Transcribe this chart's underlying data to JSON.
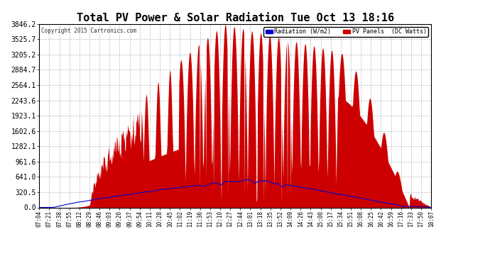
{
  "title": "Total PV Power & Solar Radiation Tue Oct 13 18:16",
  "copyright": "Copyright 2015 Cartronics.com",
  "legend_radiation": "Radiation (W/m2)",
  "legend_pv": "PV Panels  (DC Watts)",
  "yticks": [
    0.0,
    320.5,
    641.0,
    961.6,
    1282.1,
    1602.6,
    1923.1,
    2243.6,
    2564.1,
    2884.7,
    3205.2,
    3525.7,
    3846.2
  ],
  "ymax": 3846.2,
  "background_color": "#ffffff",
  "plot_bg_color": "#ffffff",
  "grid_color": "#aaaaaa",
  "pv_color": "#cc0000",
  "radiation_color": "#0000cc",
  "title_fontsize": 11,
  "xtick_labels": [
    "07:04",
    "07:21",
    "07:38",
    "07:55",
    "08:12",
    "08:29",
    "08:46",
    "09:03",
    "09:20",
    "09:37",
    "09:54",
    "10:11",
    "10:28",
    "10:45",
    "11:02",
    "11:19",
    "11:36",
    "11:53",
    "12:10",
    "12:27",
    "12:44",
    "13:01",
    "13:18",
    "13:35",
    "13:52",
    "14:09",
    "14:26",
    "14:43",
    "15:00",
    "15:17",
    "15:34",
    "15:51",
    "16:08",
    "16:25",
    "16:42",
    "16:59",
    "17:16",
    "17:33",
    "17:50",
    "18:07"
  ]
}
